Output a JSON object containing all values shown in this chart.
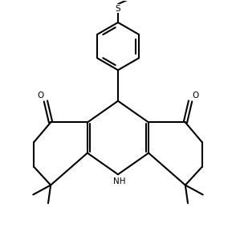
{
  "bg_color": "#ffffff",
  "line_color": "#000000",
  "line_width": 1.5,
  "figsize": [
    2.94,
    2.84
  ],
  "dpi": 100,
  "xlim": [
    -4.2,
    4.2
  ],
  "ylim": [
    -3.8,
    5.2
  ]
}
